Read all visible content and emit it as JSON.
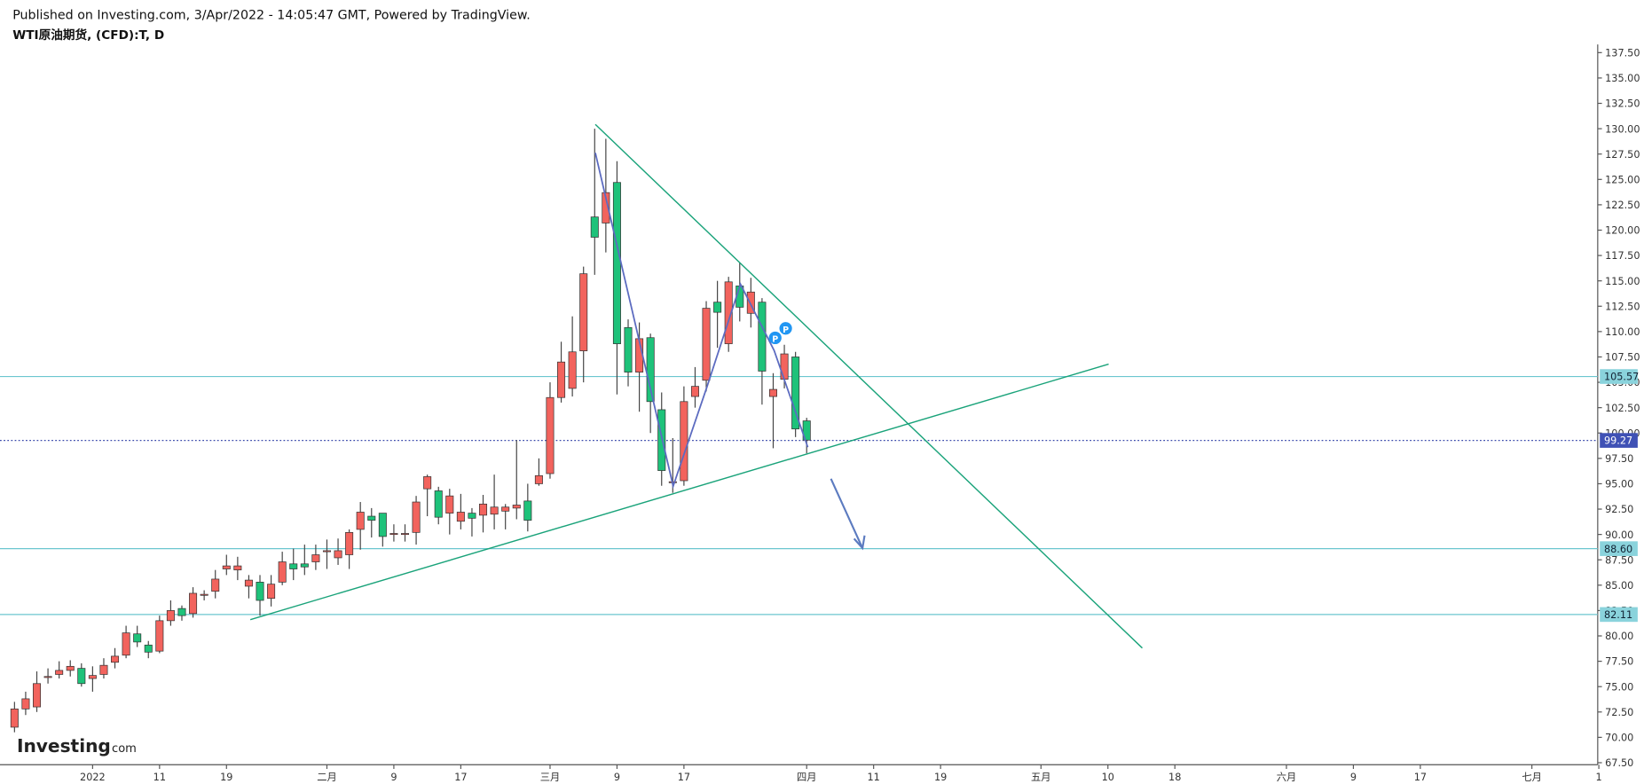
{
  "header": {
    "published": "Published on Investing.com, 3/Apr/2022 - 14:05:47 GMT, Powered by TradingView.",
    "symbol": "WTI原油期货, (CFD):T, D",
    "logo": "Investing",
    "logo_suffix": "com"
  },
  "chart_data": {
    "type": "candlestick",
    "up_color": "#f2635d",
    "down_color": "#1ec27a",
    "open": [
      71.0,
      72.8,
      73.0,
      75.9,
      76.2,
      76.6,
      76.8,
      75.8,
      76.2,
      77.4,
      78.1,
      80.2,
      79.1,
      78.5,
      81.5,
      82.7,
      82.2,
      84.0,
      84.4,
      86.6,
      86.5,
      84.9,
      85.3,
      83.7,
      85.3,
      87.1,
      87.1,
      87.3,
      88.3,
      87.7,
      88.0,
      90.5,
      91.8,
      92.1,
      90.0,
      90.0,
      90.2,
      94.5,
      94.3,
      92.1,
      91.3,
      92.1,
      91.9,
      92.0,
      92.3,
      92.6,
      93.3,
      95.0,
      96.0,
      103.5,
      104.4,
      108.1,
      121.3,
      120.7,
      124.7,
      110.4,
      106.0,
      109.4,
      102.3,
      95.1,
      95.3,
      103.6,
      105.2,
      112.9,
      108.8,
      114.5,
      111.8,
      112.9,
      103.6,
      105.3,
      107.5,
      101.2
    ],
    "high": [
      73.5,
      74.5,
      76.5,
      76.8,
      77.5,
      77.6,
      77.3,
      77.0,
      77.8,
      78.8,
      81.0,
      81.0,
      79.5,
      82.0,
      83.5,
      83.0,
      84.8,
      84.5,
      86.5,
      88.0,
      87.8,
      86.0,
      86.0,
      86.0,
      88.3,
      88.6,
      89.0,
      89.0,
      89.5,
      89.6,
      90.5,
      93.2,
      92.6,
      92.0,
      91.0,
      91.0,
      93.8,
      95.9,
      94.7,
      94.5,
      94.0,
      92.6,
      93.9,
      95.9,
      93.0,
      99.3,
      95.0,
      97.5,
      105.0,
      109.0,
      111.5,
      116.4,
      130.0,
      129.0,
      126.8,
      111.2,
      110.9,
      109.8,
      104.0,
      99.5,
      104.6,
      106.5,
      113.0,
      115.0,
      115.4,
      116.8,
      115.3,
      113.3,
      105.9,
      108.7,
      108.0,
      101.5
    ],
    "low": [
      70.5,
      72.2,
      72.5,
      75.3,
      75.8,
      76.0,
      75.0,
      74.5,
      75.8,
      76.8,
      77.8,
      78.9,
      77.8,
      78.3,
      81.0,
      81.5,
      81.8,
      83.5,
      83.7,
      86.0,
      85.5,
      83.7,
      82.0,
      82.9,
      85.0,
      85.5,
      86.0,
      86.5,
      86.6,
      87.0,
      86.6,
      88.5,
      89.7,
      88.8,
      89.3,
      89.3,
      89.0,
      91.8,
      91.0,
      90.0,
      90.5,
      89.8,
      90.2,
      90.5,
      90.5,
      91.5,
      90.3,
      94.8,
      95.5,
      103.0,
      103.6,
      105.0,
      115.6,
      117.8,
      103.8,
      104.6,
      102.1,
      100.0,
      94.8,
      94.1,
      94.8,
      102.5,
      104.1,
      108.4,
      108.0,
      111.0,
      110.4,
      102.8,
      98.5,
      104.4,
      99.6,
      98.0
    ],
    "close": [
      72.8,
      73.8,
      75.3,
      76.0,
      76.6,
      77.0,
      75.3,
      76.1,
      77.1,
      78.0,
      80.3,
      79.4,
      78.4,
      81.5,
      82.5,
      82.0,
      84.2,
      84.1,
      85.6,
      86.9,
      86.9,
      85.5,
      83.5,
      85.1,
      87.3,
      86.6,
      86.8,
      88.0,
      88.4,
      88.4,
      90.2,
      92.2,
      91.4,
      89.8,
      90.1,
      90.1,
      93.2,
      95.7,
      91.7,
      93.8,
      92.2,
      91.6,
      93.0,
      92.7,
      92.7,
      92.9,
      91.4,
      95.8,
      103.5,
      107.0,
      108.0,
      115.7,
      119.3,
      123.7,
      108.8,
      106.0,
      109.3,
      103.1,
      96.3,
      95.2,
      103.1,
      104.6,
      112.3,
      111.9,
      114.9,
      112.4,
      113.9,
      106.1,
      104.3,
      107.8,
      100.4,
      99.3
    ],
    "ylim": [
      67.3,
      138.3
    ],
    "yticks": [
      {
        "value": 67.5,
        "label": "67.50"
      },
      {
        "value": 70,
        "label": "70.00"
      },
      {
        "value": 72.5,
        "label": "72.50"
      },
      {
        "value": 75,
        "label": "75.00"
      },
      {
        "value": 77.5,
        "label": "77.50"
      },
      {
        "value": 80,
        "label": "80.00"
      },
      {
        "value": 82.5,
        "label": "82.50"
      },
      {
        "value": 85,
        "label": "85.00"
      },
      {
        "value": 87.5,
        "label": "87.50"
      },
      {
        "value": 90,
        "label": "90.00"
      },
      {
        "value": 92.5,
        "label": "92.50"
      },
      {
        "value": 95,
        "label": "95.00"
      },
      {
        "value": 97.5,
        "label": "97.50"
      },
      {
        "value": 100,
        "label": "100.00"
      },
      {
        "value": 102.5,
        "label": "102.50"
      },
      {
        "value": 105,
        "label": "105.00"
      },
      {
        "value": 107.5,
        "label": "107.50"
      },
      {
        "value": 110,
        "label": "110.00"
      },
      {
        "value": 112.5,
        "label": "112.50"
      },
      {
        "value": 115,
        "label": "115.00"
      },
      {
        "value": 117.5,
        "label": "117.50"
      },
      {
        "value": 120,
        "label": "120.00"
      },
      {
        "value": 122.5,
        "label": "122.50"
      },
      {
        "value": 125,
        "label": "125.00"
      },
      {
        "value": 127.5,
        "label": "127.50"
      },
      {
        "value": 130,
        "label": "130.00"
      },
      {
        "value": 132.5,
        "label": "132.50"
      },
      {
        "value": 135,
        "label": "135.00"
      },
      {
        "value": 137.5,
        "label": "137.50"
      }
    ],
    "xlim": [
      -1.3,
      141.9
    ],
    "xticks": [
      {
        "value": 7,
        "label": "2022"
      },
      {
        "value": 13,
        "label": "11"
      },
      {
        "value": 19,
        "label": "19"
      },
      {
        "value": 28,
        "label": "二月"
      },
      {
        "value": 34,
        "label": "9"
      },
      {
        "value": 40,
        "label": "17"
      },
      {
        "value": 48,
        "label": "三月"
      },
      {
        "value": 54,
        "label": "9"
      },
      {
        "value": 60,
        "label": "17"
      },
      {
        "value": 71,
        "label": "四月"
      },
      {
        "value": 77,
        "label": "11"
      },
      {
        "value": 83,
        "label": "19"
      },
      {
        "value": 92,
        "label": "五月"
      },
      {
        "value": 98,
        "label": "10"
      },
      {
        "value": 104,
        "label": "18"
      },
      {
        "value": 114,
        "label": "六月"
      },
      {
        "value": 120,
        "label": "9"
      },
      {
        "value": 126,
        "label": "17"
      },
      {
        "value": 136,
        "label": "七月"
      },
      {
        "value": 142,
        "label": "1"
      }
    ],
    "levels": [
      105.57,
      88.6,
      82.11
    ],
    "level_labels": [
      "105.57",
      "88.60",
      "82.11"
    ],
    "last_price": 99.27
  }
}
